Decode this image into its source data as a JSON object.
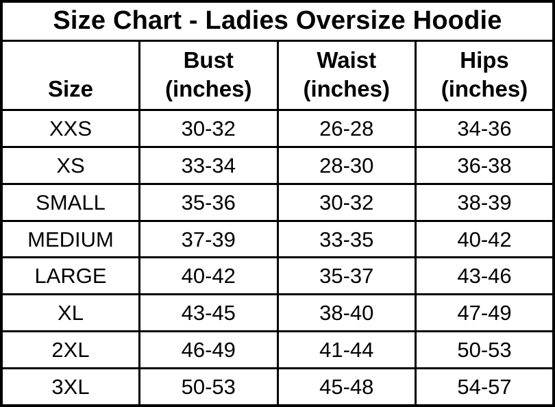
{
  "title": "Size Chart - Ladies Oversize Hoodie",
  "table": {
    "columns": [
      {
        "name": "Size",
        "unit": ""
      },
      {
        "name": "Bust",
        "unit": "(inches)"
      },
      {
        "name": "Waist",
        "unit": "(inches)"
      },
      {
        "name": "Hips",
        "unit": "(inches)"
      }
    ],
    "rows": [
      {
        "size": "XXS",
        "bust": "30-32",
        "waist": "26-28",
        "hips": "34-36"
      },
      {
        "size": "XS",
        "bust": "33-34",
        "waist": "28-30",
        "hips": "36-38"
      },
      {
        "size": "SMALL",
        "bust": "35-36",
        "waist": "30-32",
        "hips": "38-39"
      },
      {
        "size": "MEDIUM",
        "bust": "37-39",
        "waist": "33-35",
        "hips": "40-42"
      },
      {
        "size": "LARGE",
        "bust": "40-42",
        "waist": "35-37",
        "hips": "43-46"
      },
      {
        "size": "XL",
        "bust": "43-45",
        "waist": "38-40",
        "hips": "47-49"
      },
      {
        "size": "2XL",
        "bust": "46-49",
        "waist": "41-44",
        "hips": "50-53"
      },
      {
        "size": "3XL",
        "bust": "50-53",
        "waist": "45-48",
        "hips": "54-57"
      }
    ]
  },
  "chart_data": {
    "type": "table",
    "title": "Size Chart - Ladies Oversize Hoodie",
    "columns": [
      "Size",
      "Bust (inches)",
      "Waist (inches)",
      "Hips (inches)"
    ],
    "rows": [
      [
        "XXS",
        "30-32",
        "26-28",
        "34-36"
      ],
      [
        "XS",
        "33-34",
        "28-30",
        "36-38"
      ],
      [
        "SMALL",
        "35-36",
        "30-32",
        "38-39"
      ],
      [
        "MEDIUM",
        "37-39",
        "33-35",
        "40-42"
      ],
      [
        "LARGE",
        "40-42",
        "35-37",
        "43-46"
      ],
      [
        "XL",
        "43-45",
        "38-40",
        "47-49"
      ],
      [
        "2XL",
        "46-49",
        "41-44",
        "50-53"
      ],
      [
        "3XL",
        "50-53",
        "45-48",
        "54-57"
      ]
    ],
    "layout": {
      "grid": true,
      "border_color": "#000000",
      "background": "#ffffff",
      "text_color": "#000000"
    }
  },
  "colors": {
    "background": "#ffffff",
    "border": "#000000",
    "text": "#000000"
  }
}
